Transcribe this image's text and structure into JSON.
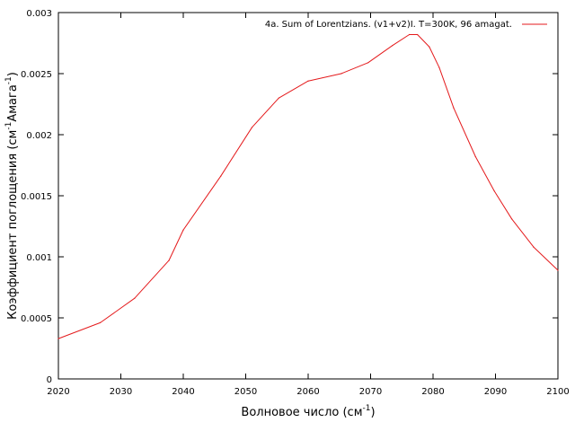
{
  "chart_data": {
    "type": "line",
    "title": "",
    "xlabel_main": "Волновое число (см",
    "xlabel_sup": "-1",
    "xlabel_close": ")",
    "ylabel_main": "Коэффициент поглощения (см",
    "ylabel_sup1": "-1",
    "ylabel_mid": "Амага",
    "ylabel_sup2": "-1",
    "ylabel_close": ")",
    "xlim": [
      2020,
      2100
    ],
    "ylim": [
      0,
      0.003
    ],
    "x_ticks": [
      "2020",
      "2030",
      "2040",
      "2050",
      "2060",
      "2070",
      "2080",
      "2090",
      "2100"
    ],
    "y_ticks": [
      "0",
      "0.0005",
      "0.001",
      "0.0015",
      "0.002",
      "0.0025",
      "0.003"
    ],
    "grid": false,
    "legend_position": "top-right",
    "series": [
      {
        "name": "4a. Sum of Lorentzians. (v1+v2)I. T=300K, 96 amagat.",
        "color": "#e41a1c",
        "x": [
          2020.0,
          2026.7,
          2032.2,
          2037.7,
          2040.0,
          2046.0,
          2051.0,
          2055.3,
          2060.0,
          2065.3,
          2069.6,
          2073.5,
          2076.2,
          2077.5,
          2079.4,
          2081.0,
          2083.3,
          2086.8,
          2089.8,
          2092.6,
          2096.1,
          2100.0
        ],
        "y": [
          0.00033,
          0.00046,
          0.00066,
          0.00097,
          0.00122,
          0.00166,
          0.00206,
          0.0023,
          0.00244,
          0.0025,
          0.00259,
          0.00273,
          0.00282,
          0.00282,
          0.00272,
          0.00255,
          0.00222,
          0.00182,
          0.00154,
          0.00131,
          0.00108,
          0.00089
        ]
      }
    ]
  }
}
